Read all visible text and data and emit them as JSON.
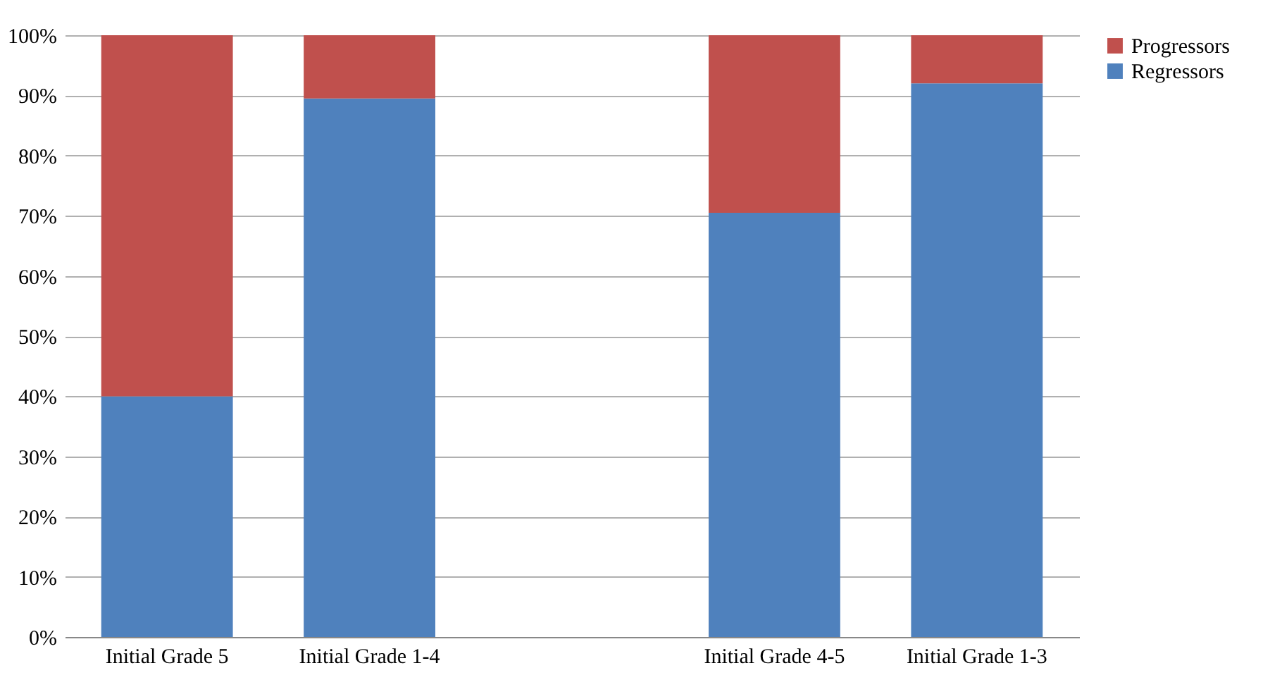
{
  "chart_data": {
    "type": "bar",
    "stacked": true,
    "categories": [
      "Initial Grade 5",
      "Initial Grade 1-4",
      null,
      "Initial Grade 4-5",
      "Initial Grade 1-3"
    ],
    "series": [
      {
        "name": "Regressors",
        "color": "#4f81bd",
        "values": [
          40,
          89.5,
          null,
          70.5,
          92
        ]
      },
      {
        "name": "Progressors",
        "color": "#c0504d",
        "values": [
          60,
          10.5,
          null,
          29.5,
          8
        ]
      }
    ],
    "ylim": [
      0,
      100
    ],
    "yticks": [
      {
        "value": 0,
        "label": "0%"
      },
      {
        "value": 10,
        "label": "10%"
      },
      {
        "value": 20,
        "label": "20%"
      },
      {
        "value": 30,
        "label": "30%"
      },
      {
        "value": 40,
        "label": "40%"
      },
      {
        "value": 50,
        "label": "50%"
      },
      {
        "value": 60,
        "label": "60%"
      },
      {
        "value": 70,
        "label": "70%"
      },
      {
        "value": 80,
        "label": "80%"
      },
      {
        "value": 90,
        "label": "90%"
      },
      {
        "value": 100,
        "label": "100%"
      }
    ],
    "grid": "y",
    "legend": "right"
  }
}
